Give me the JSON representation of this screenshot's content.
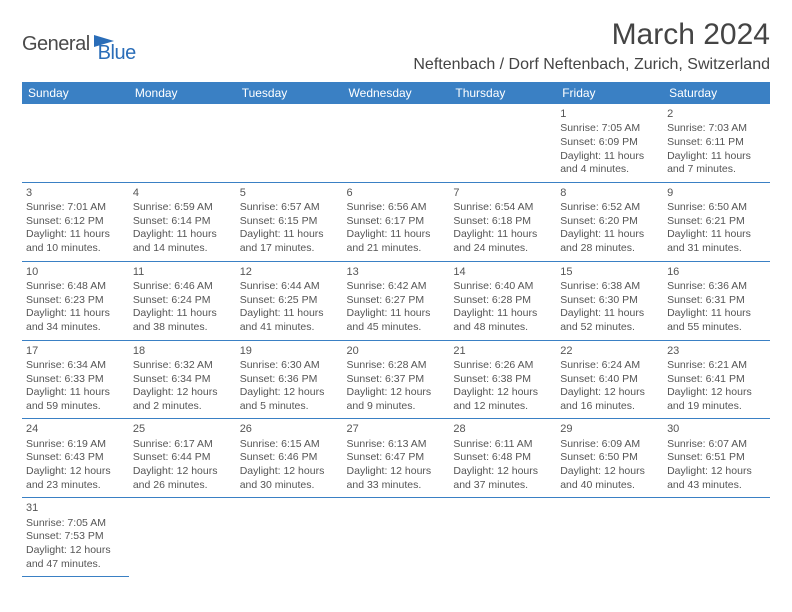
{
  "logo": {
    "general": "General",
    "blue": "Blue"
  },
  "title": "March 2024",
  "location": "Neftenbach / Dorf Neftenbach, Zurich, Switzerland",
  "columns": [
    "Sunday",
    "Monday",
    "Tuesday",
    "Wednesday",
    "Thursday",
    "Friday",
    "Saturday"
  ],
  "weeks": [
    [
      null,
      null,
      null,
      null,
      null,
      {
        "n": "1",
        "sr": "Sunrise: 7:05 AM",
        "ss": "Sunset: 6:09 PM",
        "dl": "Daylight: 11 hours and 4 minutes."
      },
      {
        "n": "2",
        "sr": "Sunrise: 7:03 AM",
        "ss": "Sunset: 6:11 PM",
        "dl": "Daylight: 11 hours and 7 minutes."
      }
    ],
    [
      {
        "n": "3",
        "sr": "Sunrise: 7:01 AM",
        "ss": "Sunset: 6:12 PM",
        "dl": "Daylight: 11 hours and 10 minutes."
      },
      {
        "n": "4",
        "sr": "Sunrise: 6:59 AM",
        "ss": "Sunset: 6:14 PM",
        "dl": "Daylight: 11 hours and 14 minutes."
      },
      {
        "n": "5",
        "sr": "Sunrise: 6:57 AM",
        "ss": "Sunset: 6:15 PM",
        "dl": "Daylight: 11 hours and 17 minutes."
      },
      {
        "n": "6",
        "sr": "Sunrise: 6:56 AM",
        "ss": "Sunset: 6:17 PM",
        "dl": "Daylight: 11 hours and 21 minutes."
      },
      {
        "n": "7",
        "sr": "Sunrise: 6:54 AM",
        "ss": "Sunset: 6:18 PM",
        "dl": "Daylight: 11 hours and 24 minutes."
      },
      {
        "n": "8",
        "sr": "Sunrise: 6:52 AM",
        "ss": "Sunset: 6:20 PM",
        "dl": "Daylight: 11 hours and 28 minutes."
      },
      {
        "n": "9",
        "sr": "Sunrise: 6:50 AM",
        "ss": "Sunset: 6:21 PM",
        "dl": "Daylight: 11 hours and 31 minutes."
      }
    ],
    [
      {
        "n": "10",
        "sr": "Sunrise: 6:48 AM",
        "ss": "Sunset: 6:23 PM",
        "dl": "Daylight: 11 hours and 34 minutes."
      },
      {
        "n": "11",
        "sr": "Sunrise: 6:46 AM",
        "ss": "Sunset: 6:24 PM",
        "dl": "Daylight: 11 hours and 38 minutes."
      },
      {
        "n": "12",
        "sr": "Sunrise: 6:44 AM",
        "ss": "Sunset: 6:25 PM",
        "dl": "Daylight: 11 hours and 41 minutes."
      },
      {
        "n": "13",
        "sr": "Sunrise: 6:42 AM",
        "ss": "Sunset: 6:27 PM",
        "dl": "Daylight: 11 hours and 45 minutes."
      },
      {
        "n": "14",
        "sr": "Sunrise: 6:40 AM",
        "ss": "Sunset: 6:28 PM",
        "dl": "Daylight: 11 hours and 48 minutes."
      },
      {
        "n": "15",
        "sr": "Sunrise: 6:38 AM",
        "ss": "Sunset: 6:30 PM",
        "dl": "Daylight: 11 hours and 52 minutes."
      },
      {
        "n": "16",
        "sr": "Sunrise: 6:36 AM",
        "ss": "Sunset: 6:31 PM",
        "dl": "Daylight: 11 hours and 55 minutes."
      }
    ],
    [
      {
        "n": "17",
        "sr": "Sunrise: 6:34 AM",
        "ss": "Sunset: 6:33 PM",
        "dl": "Daylight: 11 hours and 59 minutes."
      },
      {
        "n": "18",
        "sr": "Sunrise: 6:32 AM",
        "ss": "Sunset: 6:34 PM",
        "dl": "Daylight: 12 hours and 2 minutes."
      },
      {
        "n": "19",
        "sr": "Sunrise: 6:30 AM",
        "ss": "Sunset: 6:36 PM",
        "dl": "Daylight: 12 hours and 5 minutes."
      },
      {
        "n": "20",
        "sr": "Sunrise: 6:28 AM",
        "ss": "Sunset: 6:37 PM",
        "dl": "Daylight: 12 hours and 9 minutes."
      },
      {
        "n": "21",
        "sr": "Sunrise: 6:26 AM",
        "ss": "Sunset: 6:38 PM",
        "dl": "Daylight: 12 hours and 12 minutes."
      },
      {
        "n": "22",
        "sr": "Sunrise: 6:24 AM",
        "ss": "Sunset: 6:40 PM",
        "dl": "Daylight: 12 hours and 16 minutes."
      },
      {
        "n": "23",
        "sr": "Sunrise: 6:21 AM",
        "ss": "Sunset: 6:41 PM",
        "dl": "Daylight: 12 hours and 19 minutes."
      }
    ],
    [
      {
        "n": "24",
        "sr": "Sunrise: 6:19 AM",
        "ss": "Sunset: 6:43 PM",
        "dl": "Daylight: 12 hours and 23 minutes."
      },
      {
        "n": "25",
        "sr": "Sunrise: 6:17 AM",
        "ss": "Sunset: 6:44 PM",
        "dl": "Daylight: 12 hours and 26 minutes."
      },
      {
        "n": "26",
        "sr": "Sunrise: 6:15 AM",
        "ss": "Sunset: 6:46 PM",
        "dl": "Daylight: 12 hours and 30 minutes."
      },
      {
        "n": "27",
        "sr": "Sunrise: 6:13 AM",
        "ss": "Sunset: 6:47 PM",
        "dl": "Daylight: 12 hours and 33 minutes."
      },
      {
        "n": "28",
        "sr": "Sunrise: 6:11 AM",
        "ss": "Sunset: 6:48 PM",
        "dl": "Daylight: 12 hours and 37 minutes."
      },
      {
        "n": "29",
        "sr": "Sunrise: 6:09 AM",
        "ss": "Sunset: 6:50 PM",
        "dl": "Daylight: 12 hours and 40 minutes."
      },
      {
        "n": "30",
        "sr": "Sunrise: 6:07 AM",
        "ss": "Sunset: 6:51 PM",
        "dl": "Daylight: 12 hours and 43 minutes."
      }
    ],
    [
      {
        "n": "31",
        "sr": "Sunrise: 7:05 AM",
        "ss": "Sunset: 7:53 PM",
        "dl": "Daylight: 12 hours and 47 minutes."
      },
      null,
      null,
      null,
      null,
      null,
      null
    ]
  ],
  "colors": {
    "header_bg": "#3a80c4",
    "header_text": "#ffffff",
    "cell_border": "#3a80c4",
    "text": "#555555"
  }
}
